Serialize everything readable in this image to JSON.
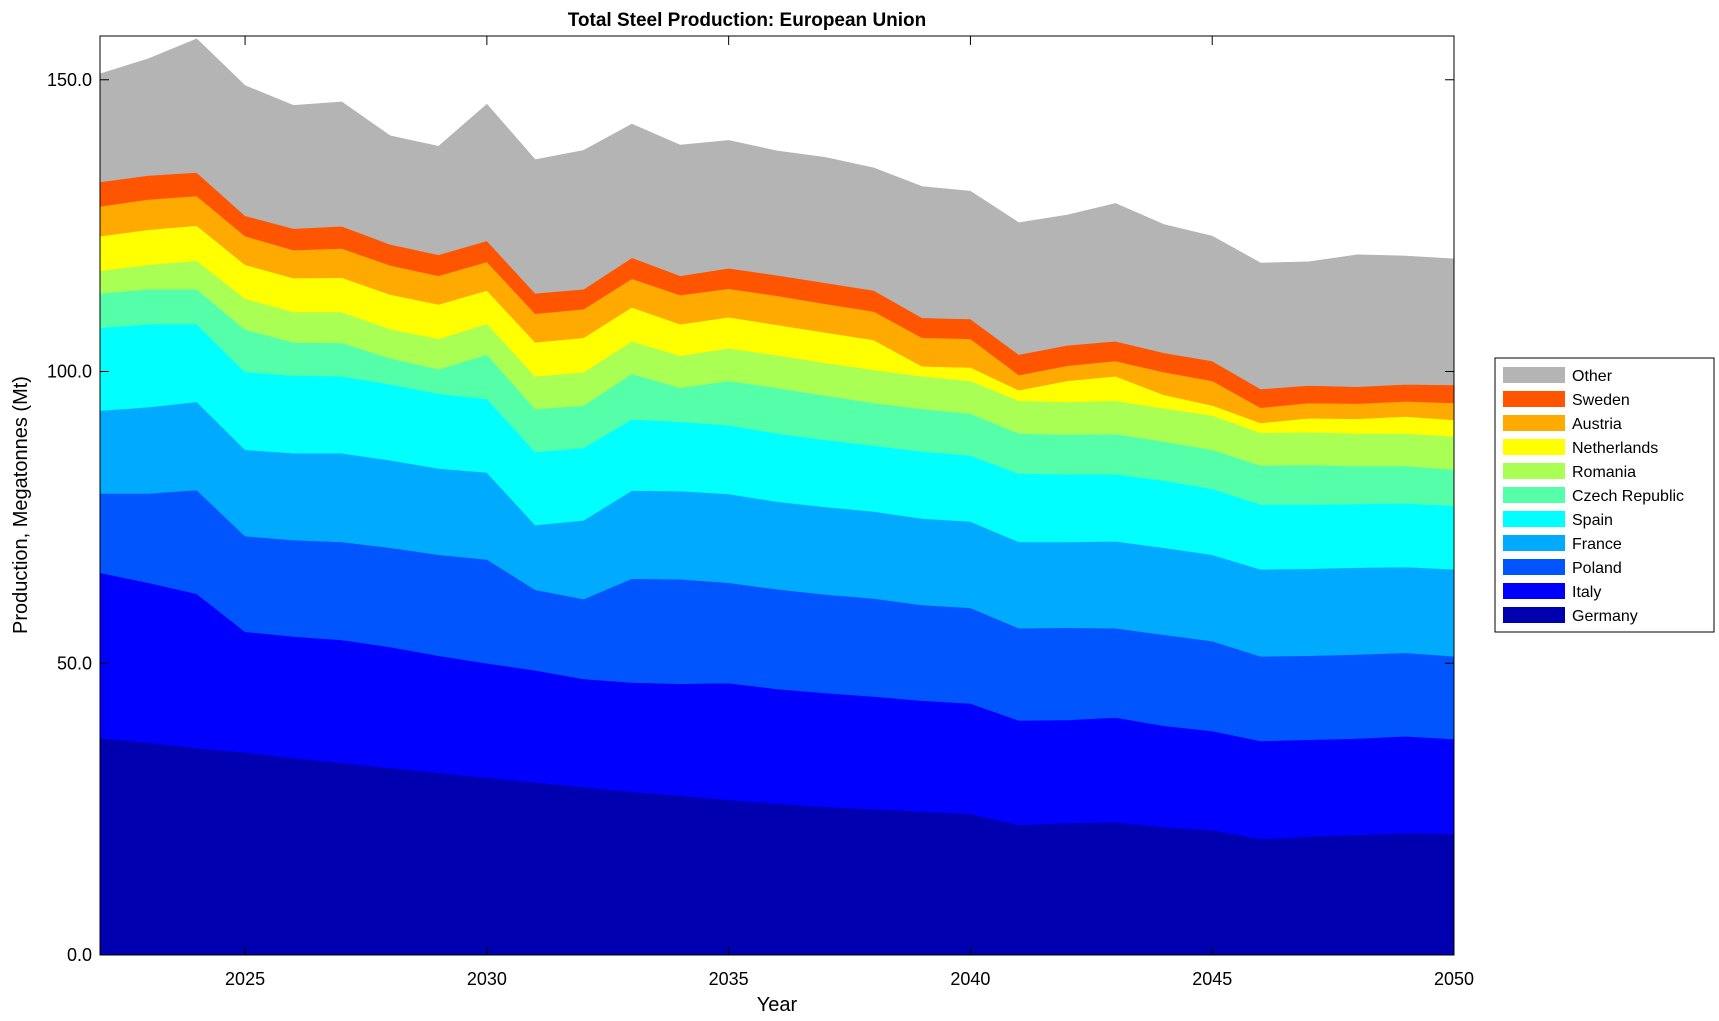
{
  "chart_data": {
    "type": "area",
    "title": "Total Steel Production: European Union",
    "xlabel": "Year",
    "ylabel": "Production, Megatonnes (Mt)",
    "xlim": [
      2022,
      2050
    ],
    "ylim": [
      0,
      157.5
    ],
    "x_ticks": [
      "2025",
      "2030",
      "2035",
      "2040",
      "2045",
      "2050"
    ],
    "y_ticks": [
      "0.0",
      "50.0",
      "100.0",
      "150.0"
    ],
    "grid": false,
    "legend_position": "right",
    "x": [
      2022,
      2023,
      2024,
      2025,
      2026,
      2027,
      2028,
      2029,
      2030,
      2031,
      2032,
      2033,
      2034,
      2035,
      2036,
      2037,
      2038,
      2039,
      2040,
      2041,
      2042,
      2043,
      2044,
      2045,
      2046,
      2047,
      2048,
      2049,
      2050
    ],
    "series": [
      {
        "name": "Germany",
        "color": "#0000b0",
        "values": [
          37.2,
          36.4,
          35.5,
          34.7,
          33.8,
          32.9,
          32.1,
          31.2,
          30.4,
          29.6,
          28.8,
          28.0,
          27.3,
          26.6,
          26.0,
          25.4,
          25.0,
          24.6,
          24.2,
          22.3,
          22.6,
          22.8,
          21.9,
          21.4,
          19.9,
          20.3,
          20.6,
          20.9,
          20.8
        ]
      },
      {
        "name": "Italy",
        "color": "#0000ff",
        "values": [
          28.3,
          27.4,
          26.4,
          20.7,
          20.8,
          21.1,
          20.7,
          20.1,
          19.6,
          19.2,
          18.5,
          18.7,
          19.2,
          20.0,
          19.6,
          19.5,
          19.3,
          19.0,
          18.9,
          17.9,
          17.7,
          17.9,
          17.4,
          17.0,
          16.8,
          16.6,
          16.5,
          16.6,
          16.2
        ]
      },
      {
        "name": "Poland",
        "color": "#0055ff",
        "values": [
          13.6,
          15.3,
          17.8,
          16.4,
          16.5,
          16.8,
          17.0,
          17.3,
          17.8,
          13.8,
          13.7,
          17.8,
          17.9,
          17.2,
          17.1,
          16.9,
          16.8,
          16.4,
          16.4,
          15.8,
          15.8,
          15.3,
          15.6,
          15.4,
          14.5,
          14.4,
          14.4,
          14.3,
          14.2
        ]
      },
      {
        "name": "France",
        "color": "#00aaff",
        "values": [
          14.2,
          14.8,
          15.1,
          14.8,
          14.9,
          15.2,
          15.0,
          14.8,
          14.9,
          11.1,
          13.5,
          15.1,
          15.1,
          15.2,
          15.0,
          15.0,
          14.9,
          14.8,
          14.8,
          14.8,
          14.7,
          14.9,
          14.9,
          14.8,
          14.9,
          14.9,
          14.9,
          14.7,
          14.9
        ]
      },
      {
        "name": "Spain",
        "color": "#00ffff",
        "values": [
          14.2,
          14.2,
          13.3,
          13.3,
          13.3,
          13.2,
          13.0,
          12.8,
          12.6,
          12.5,
          12.4,
          12.2,
          11.9,
          11.8,
          11.7,
          11.5,
          11.3,
          11.5,
          11.3,
          11.7,
          11.6,
          11.5,
          11.5,
          11.3,
          11.1,
          11.0,
          10.9,
          10.9,
          10.9
        ]
      },
      {
        "name": "Czech Republic",
        "color": "#55ffaa",
        "values": [
          5.9,
          6.0,
          6.0,
          7.3,
          5.7,
          5.7,
          4.5,
          4.2,
          7.6,
          7.4,
          7.3,
          7.8,
          5.8,
          7.6,
          7.8,
          7.6,
          7.3,
          7.3,
          7.2,
          6.9,
          6.8,
          6.9,
          6.7,
          6.7,
          6.7,
          6.8,
          6.5,
          6.4,
          6.2
        ]
      },
      {
        "name": "Romania",
        "color": "#aaff55",
        "values": [
          3.9,
          4.2,
          4.9,
          5.3,
          5.2,
          5.3,
          5.0,
          5.2,
          5.3,
          5.6,
          5.7,
          5.6,
          5.5,
          5.6,
          5.6,
          5.6,
          5.7,
          5.6,
          5.6,
          5.6,
          5.6,
          5.7,
          5.7,
          5.9,
          5.6,
          5.6,
          5.6,
          5.6,
          5.7
        ]
      },
      {
        "name": "Netherlands",
        "color": "#ffff00",
        "values": [
          5.9,
          6.0,
          6.0,
          5.8,
          5.8,
          5.9,
          5.9,
          5.9,
          5.7,
          5.8,
          5.9,
          5.8,
          5.4,
          5.3,
          5.2,
          5.2,
          5.1,
          1.7,
          2.3,
          1.8,
          3.6,
          4.2,
          2.3,
          1.7,
          1.7,
          2.4,
          2.5,
          2.9,
          2.8
        ]
      },
      {
        "name": "Austria",
        "color": "#ffaa00",
        "values": [
          5.1,
          5.2,
          5.1,
          4.9,
          4.8,
          5.0,
          5.0,
          4.9,
          4.9,
          4.9,
          4.9,
          4.9,
          5.0,
          4.9,
          5.0,
          4.9,
          4.9,
          4.9,
          4.9,
          2.6,
          2.6,
          2.6,
          3.9,
          4.2,
          2.6,
          2.6,
          2.6,
          2.6,
          2.9
        ]
      },
      {
        "name": "Sweden",
        "color": "#ff5500",
        "values": [
          4.2,
          4.1,
          4.0,
          3.5,
          3.7,
          3.8,
          3.6,
          3.6,
          3.6,
          3.5,
          3.4,
          3.6,
          3.3,
          3.5,
          3.5,
          3.6,
          3.6,
          3.4,
          3.4,
          3.5,
          3.5,
          3.4,
          3.3,
          3.4,
          3.2,
          3.0,
          2.9,
          2.9,
          3.1
        ]
      },
      {
        "name": "Other",
        "color": "#b4b4b4",
        "values": [
          18.5,
          20.0,
          22.9,
          22.3,
          21.1,
          21.3,
          18.6,
          18.6,
          23.4,
          22.9,
          23.8,
          22.9,
          22.4,
          21.9,
          21.3,
          21.5,
          21.0,
          22.5,
          21.9,
          22.6,
          22.3,
          23.6,
          22.0,
          21.4,
          21.6,
          21.2,
          22.6,
          22.0,
          21.6
        ]
      }
    ]
  }
}
